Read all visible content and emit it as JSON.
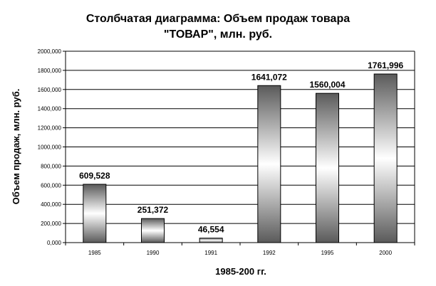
{
  "chart_data": {
    "type": "bar",
    "title_line1": "Столбчатая диаграмма:  Объем продаж товара",
    "title_line2": "\"ТОВАР\", млн. руб.",
    "xlabel": "1985-200 гг.",
    "ylabel": "Объем продаж, млн. руб.",
    "categories": [
      "1985",
      "1990",
      "1991",
      "1992",
      "1995",
      "2000"
    ],
    "values": [
      609528,
      251372,
      46554,
      1641072,
      1560004,
      1761996
    ],
    "data_labels": [
      "609,528",
      "251,372",
      "46,554",
      "1641,072",
      "1560,004",
      "1761,996"
    ],
    "ylim": [
      0,
      2000000
    ],
    "yticks": [
      0,
      200000,
      400000,
      600000,
      800000,
      1000000,
      1200000,
      1400000,
      1600000,
      1800000,
      2000000
    ],
    "ytick_labels": [
      "0,000",
      "200,000",
      "400,000",
      "600,000",
      "800,000",
      "1000,000",
      "1200,000",
      "1400,000",
      "1600,000",
      "1800,000",
      "2000,000"
    ],
    "grid": true,
    "legend": false
  }
}
